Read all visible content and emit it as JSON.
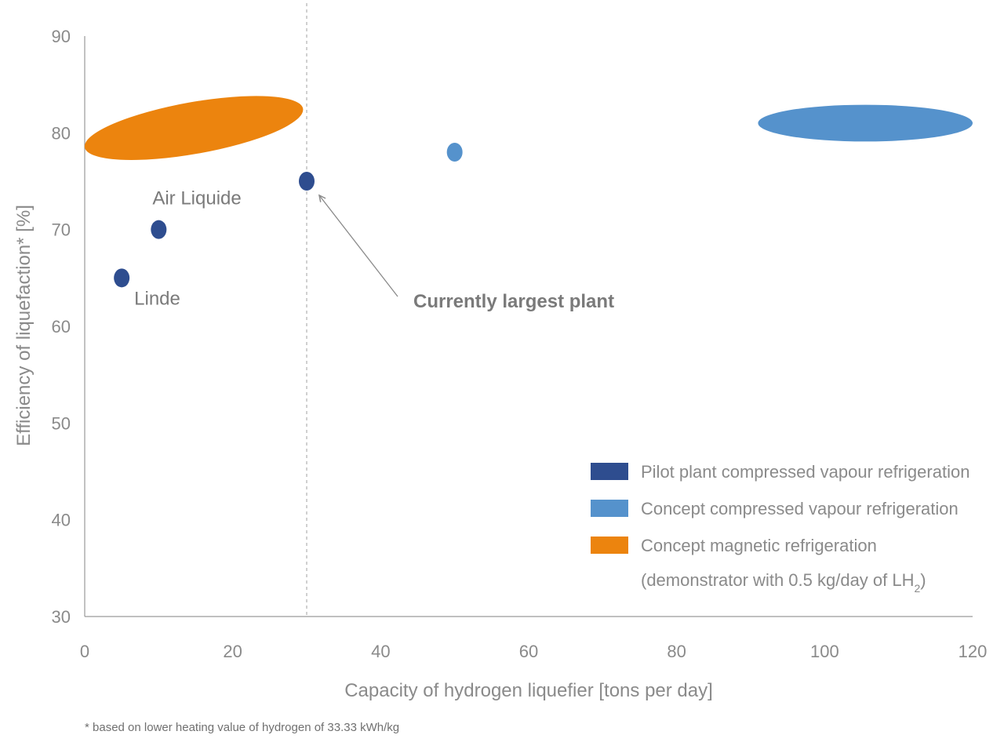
{
  "chart_data": {
    "type": "scatter",
    "xlabel": "Capacity of hydrogen liquefier [tons per day]",
    "ylabel": "Efficiency of liquefaction* [%]",
    "xlim": [
      0,
      120
    ],
    "ylim": [
      30,
      90
    ],
    "xticks": [
      0,
      20,
      40,
      60,
      80,
      100,
      120
    ],
    "yticks": [
      30,
      40,
      50,
      60,
      70,
      80,
      90
    ],
    "grid": false,
    "legend_position": "bottom-right",
    "reference_line": {
      "x": 30,
      "style": "dashed"
    },
    "series": [
      {
        "name": "Pilot plant compressed vapour refrigeration",
        "color": "#2e4d8f",
        "points": [
          {
            "x": 5,
            "y": 65,
            "label": "Linde"
          },
          {
            "x": 10,
            "y": 70,
            "label": "Air Liquide"
          },
          {
            "x": 30,
            "y": 75,
            "label": ""
          }
        ]
      },
      {
        "name": "Concept compressed vapour refrigeration",
        "color": "#5592cc",
        "points": [
          {
            "x": 50,
            "y": 78
          }
        ],
        "regions": [
          {
            "x_range": [
              91,
              120
            ],
            "y_center": 81,
            "y_spread": 1.9
          }
        ]
      },
      {
        "name": "Concept magnetic refrigeration",
        "name_line2": "(demonstrator with 0.5 kg/day of LH",
        "name_line2_sub": "2",
        "name_line2_end": ")",
        "color": "#ec840e",
        "regions": [
          {
            "x_range": [
              0,
              29.5
            ],
            "y_start": 78.5,
            "y_end": 82.5,
            "tilt": "rising"
          }
        ]
      }
    ],
    "annotations": [
      {
        "text": "Currently largest plant",
        "arrow_to": {
          "x": 30,
          "y": 75
        },
        "bold": true
      }
    ],
    "footnote": "* based on lower heating value of hydrogen of 33.33 kWh/kg"
  }
}
